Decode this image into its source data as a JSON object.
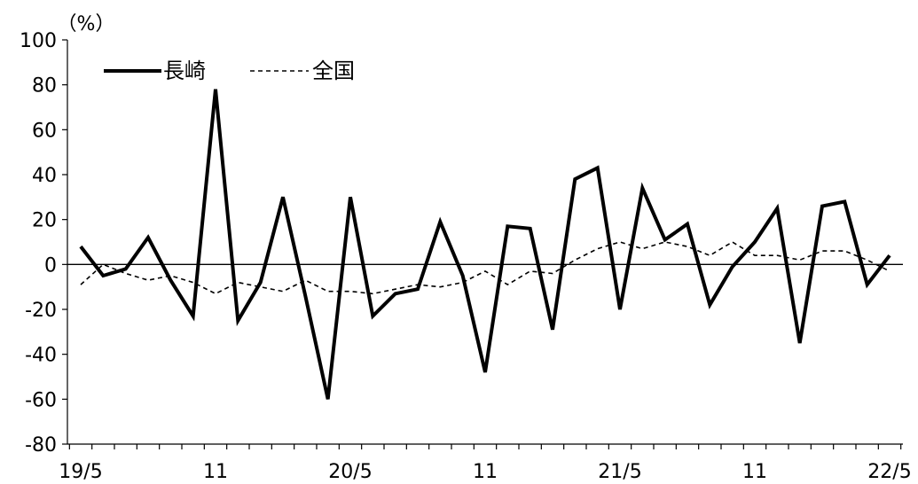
{
  "chart_data": {
    "type": "line",
    "unit_label": "（%）",
    "ylim": [
      -80,
      100
    ],
    "yticks": [
      100,
      80,
      60,
      40,
      20,
      0,
      -20,
      -40,
      -60,
      -80
    ],
    "x_tick_labels": [
      {
        "index": 0,
        "label": "19/5"
      },
      {
        "index": 6,
        "label": "11"
      },
      {
        "index": 12,
        "label": "20/5"
      },
      {
        "index": 18,
        "label": "11"
      },
      {
        "index": 24,
        "label": "21/5"
      },
      {
        "index": 30,
        "label": "11"
      },
      {
        "index": 36,
        "label": "22/5"
      }
    ],
    "point_count": 37,
    "legend_placement": "top-left",
    "zero_line": true,
    "series": [
      {
        "name": "長崎",
        "style": "solid",
        "color": "#000000",
        "values": [
          8,
          -5,
          -2,
          12,
          -7,
          -23,
          78,
          -25,
          -8,
          30,
          -14,
          -60,
          30,
          -23,
          -13,
          -11,
          19,
          -5,
          -48,
          17,
          16,
          -29,
          38,
          43,
          -20,
          34,
          11,
          18,
          -18,
          -1,
          10,
          25,
          -35,
          26,
          28,
          -9,
          4
        ]
      },
      {
        "name": "全国",
        "style": "dashed",
        "color": "#000000",
        "values": [
          -9,
          0,
          -4,
          -7,
          -5,
          -8,
          -13,
          -8,
          -10,
          -12,
          -7,
          -12,
          -12,
          -13,
          -11,
          -9,
          -10,
          -8,
          -3,
          -9,
          -3,
          -4,
          2,
          7,
          10,
          7,
          10,
          8,
          4,
          10,
          4,
          4,
          2,
          6,
          6,
          2,
          -3
        ]
      }
    ]
  }
}
